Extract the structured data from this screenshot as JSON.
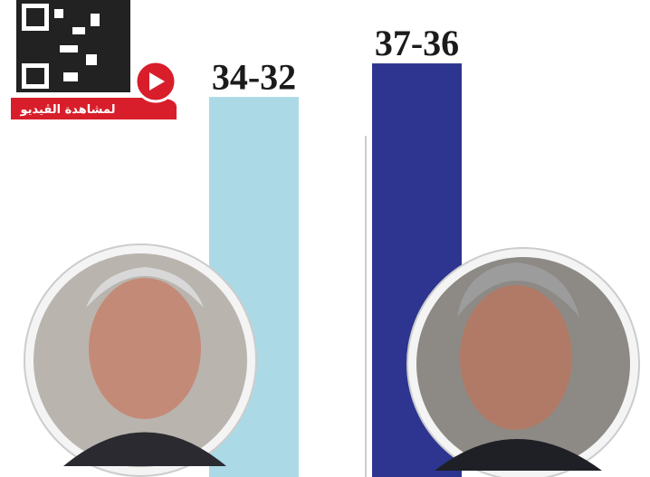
{
  "chart_data": {
    "type": "bar",
    "categories": [
      null,
      null
    ],
    "values": [
      34,
      37
    ],
    "value_labels": [
      "34-32",
      "37-36"
    ],
    "colors": [
      "#acd9e6",
      "#2d3590"
    ]
  },
  "badge": {
    "text": "لمشاهدة الڤيديو"
  }
}
